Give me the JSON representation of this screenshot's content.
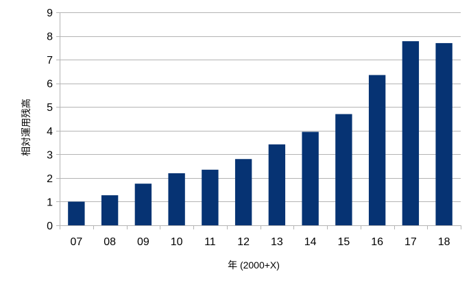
{
  "chart_data": {
    "type": "bar",
    "categories": [
      "07",
      "08",
      "09",
      "10",
      "11",
      "12",
      "13",
      "14",
      "15",
      "16",
      "17",
      "18"
    ],
    "values": [
      1.0,
      1.27,
      1.76,
      2.2,
      2.35,
      2.8,
      3.42,
      3.95,
      4.7,
      6.35,
      7.78,
      7.7
    ],
    "title": "",
    "xlabel": "年 (2000+X)",
    "ylabel": "相対運用残高",
    "ylim": [
      0,
      9
    ],
    "yticks": [
      0,
      1,
      2,
      3,
      4,
      5,
      6,
      7,
      8,
      9
    ],
    "grid": true,
    "legend": "none",
    "colors": {
      "bar": "#063373",
      "grid": "#b3b3b3",
      "axis": "#b3b3b3"
    }
  }
}
